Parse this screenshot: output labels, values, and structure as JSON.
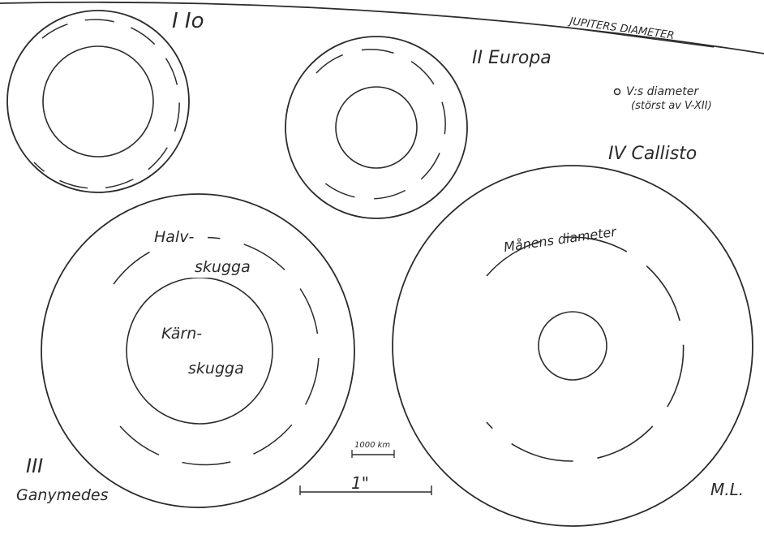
{
  "labels": {
    "io": "I  Io",
    "europa": "II  Europa",
    "callisto": "IV  Callisto",
    "ganymede_num": "III",
    "ganymede_name": "Ganymedes",
    "jupiter_diameter": "JUPITERS DIAMETER",
    "v_diameter_line1": "V:s diameter",
    "v_diameter_line2": "(störst av V-XII)",
    "halv": "Halv-",
    "skugga_top": "skugga",
    "karn": "Kärn-",
    "skugga_bottom": "skugga",
    "manens_diameter": "Månens diameter",
    "scale_km": "1000 km",
    "scale_arcsec": "1\"",
    "signature": "M.L."
  },
  "colors": {
    "ink": "#2b2b2b",
    "paper": "#ffffff",
    "penumbra_hatch": "#6a6a6a",
    "umbra_fill": "#3a3a3a"
  },
  "moons": [
    {
      "id": "io",
      "numeral": "I",
      "name": "Io"
    },
    {
      "id": "europa",
      "numeral": "II",
      "name": "Europa"
    },
    {
      "id": "ganymede",
      "numeral": "III",
      "name": "Ganymedes"
    },
    {
      "id": "callisto",
      "numeral": "IV",
      "name": "Callisto"
    }
  ]
}
